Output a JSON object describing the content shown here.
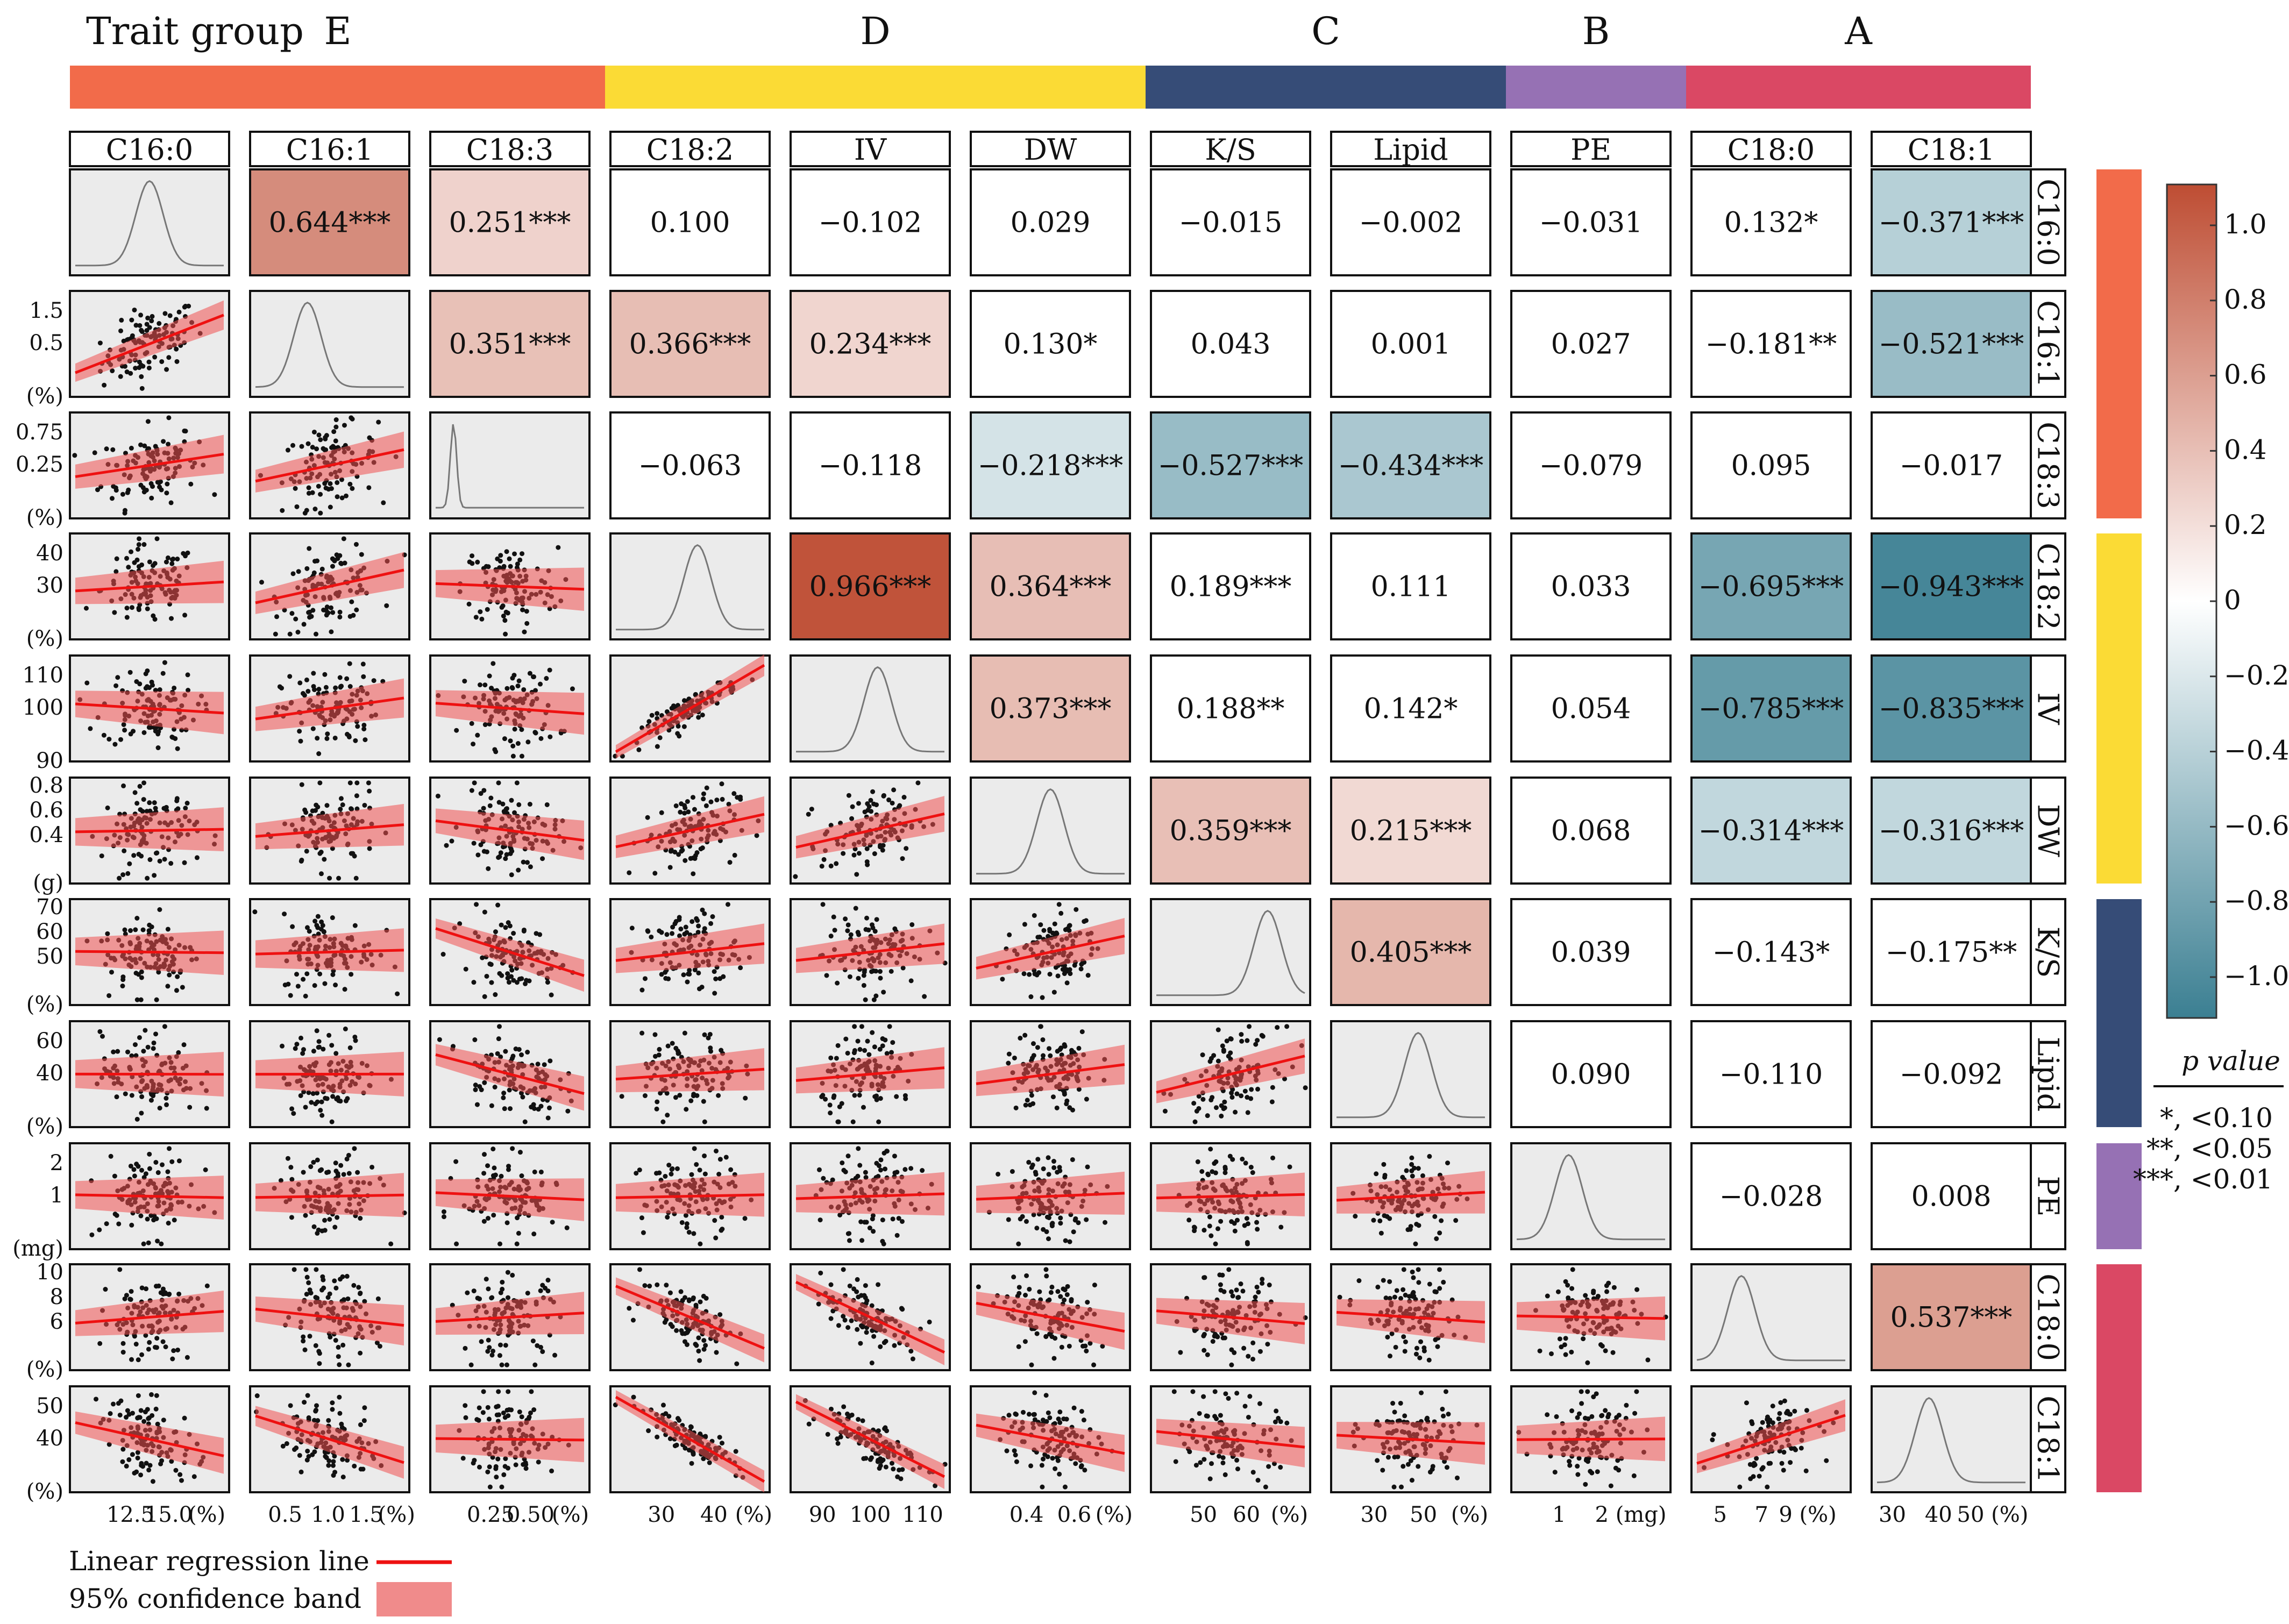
{
  "chart_data": {
    "type": "table",
    "title": "Trait group",
    "variables": [
      "C16:0",
      "C16:1",
      "C18:3",
      "C18:2",
      "IV",
      "DW",
      "K/S",
      "Lipid",
      "PE",
      "C18:0",
      "C18:1"
    ],
    "groups": [
      {
        "name": "E",
        "span": [
          0,
          2
        ],
        "color": "#F26B4A"
      },
      {
        "name": "D",
        "span": [
          3,
          5
        ],
        "color": "#FBDB35"
      },
      {
        "name": "C",
        "span": [
          6,
          7
        ],
        "color": "#364C77"
      },
      {
        "name": "B",
        "span": [
          8,
          8
        ],
        "color": "#9671B4"
      },
      {
        "name": "A",
        "span": [
          9,
          10
        ],
        "color": "#DA4864"
      }
    ],
    "correlations": [
      [
        "",
        "0.644***",
        "0.251***",
        "0.100",
        "−0.102",
        "0.029",
        "−0.015",
        "−0.002",
        "−0.031",
        "0.132*",
        "−0.371***"
      ],
      [
        "",
        "",
        "0.351***",
        "0.366***",
        "0.234***",
        "0.130*",
        "0.043",
        "0.001",
        "0.027",
        "−0.181**",
        "−0.521***"
      ],
      [
        "",
        "",
        "",
        "−0.063",
        "−0.118",
        "−0.218***",
        "−0.527***",
        "−0.434***",
        "−0.079",
        "0.095",
        "−0.017"
      ],
      [
        "",
        "",
        "",
        "",
        "0.966***",
        "0.364***",
        "0.189***",
        "0.111",
        "0.033",
        "−0.695***",
        "−0.943***"
      ],
      [
        "",
        "",
        "",
        "",
        "",
        "0.373***",
        "0.188**",
        "0.142*",
        "0.054",
        "−0.785***",
        "−0.835***"
      ],
      [
        "",
        "",
        "",
        "",
        "",
        "",
        "0.359***",
        "0.215***",
        "0.068",
        "−0.314***",
        "−0.316***"
      ],
      [
        "",
        "",
        "",
        "",
        "",
        "",
        "",
        "0.405***",
        "0.039",
        "−0.143*",
        "−0.175**"
      ],
      [
        "",
        "",
        "",
        "",
        "",
        "",
        "",
        "",
        "0.090",
        "−0.110",
        "−0.092"
      ],
      [
        "",
        "",
        "",
        "",
        "",
        "",
        "",
        "",
        "",
        "−0.028",
        "0.008"
      ],
      [
        "",
        "",
        "",
        "",
        "",
        "",
        "",
        "",
        "",
        "",
        "0.537***"
      ]
    ],
    "correlation_values": [
      [
        null,
        0.644,
        0.251,
        0.1,
        -0.102,
        0.029,
        -0.015,
        -0.002,
        -0.031,
        0.132,
        -0.371
      ],
      [
        null,
        null,
        0.351,
        0.366,
        0.234,
        0.13,
        0.043,
        0.001,
        0.027,
        -0.181,
        -0.521
      ],
      [
        null,
        null,
        null,
        -0.063,
        -0.118,
        -0.218,
        -0.527,
        -0.434,
        -0.079,
        0.095,
        -0.017
      ],
      [
        null,
        null,
        null,
        null,
        0.966,
        0.364,
        0.189,
        0.111,
        0.033,
        -0.695,
        -0.943
      ],
      [
        null,
        null,
        null,
        null,
        null,
        0.373,
        0.188,
        0.142,
        0.054,
        -0.785,
        -0.835
      ],
      [
        null,
        null,
        null,
        null,
        null,
        null,
        0.359,
        0.215,
        0.068,
        -0.314,
        -0.316
      ],
      [
        null,
        null,
        null,
        null,
        null,
        null,
        null,
        0.405,
        0.039,
        -0.143,
        -0.175
      ],
      [
        null,
        null,
        null,
        null,
        null,
        null,
        null,
        null,
        0.09,
        -0.11,
        -0.092
      ],
      [
        null,
        null,
        null,
        null,
        null,
        null,
        null,
        null,
        null,
        -0.028,
        0.008
      ],
      [
        null,
        null,
        null,
        null,
        null,
        null,
        null,
        null,
        null,
        null,
        0.537
      ]
    ],
    "x_ticks": [
      [
        "12.5",
        "15.0",
        "(%)"
      ],
      [
        "0.5",
        "1.0",
        "1.5",
        "(%)"
      ],
      [
        "0.25",
        "0.50",
        "(%)"
      ],
      [
        "30",
        "40",
        "(%)"
      ],
      [
        "90",
        "100",
        "110"
      ],
      [
        "0.4",
        "0.6",
        "(%)"
      ],
      [
        "50",
        "60",
        "(%)"
      ],
      [
        "30",
        "50",
        "(%)"
      ],
      [
        "1",
        "2 (mg)"
      ],
      [
        "5",
        "7",
        "9 (%)"
      ],
      [
        "30",
        "40",
        "50 (%)"
      ]
    ],
    "y_ticks": [
      [],
      [
        "1.5",
        "0.5",
        "(%)"
      ],
      [
        "0.75",
        "0.25",
        "(%)"
      ],
      [
        "40",
        "30",
        "(%)"
      ],
      [
        "110",
        "100",
        "90"
      ],
      [
        "0.8",
        "0.6",
        "0.4",
        "(g)"
      ],
      [
        "70",
        "60",
        "50",
        "(%)"
      ],
      [
        "60",
        "40",
        "(%)"
      ],
      [
        "2",
        "1",
        "(mg)"
      ],
      [
        "10",
        "8",
        "6",
        "(%)"
      ],
      [
        "50",
        "40",
        "(%)"
      ]
    ],
    "colorbar": {
      "ticks": [
        "1.0",
        "0.8",
        "0.6",
        "0.4",
        "0.2",
        "0",
        "−0.2",
        "−0.4",
        "−0.6",
        "−0.8",
        "−1.0"
      ],
      "range": [
        -1,
        1
      ],
      "high": "#BE4D33",
      "mid": "#ffffff",
      "low": "#3B7F92"
    },
    "pvalue_legend": {
      "title": "p value",
      "entries": [
        "*, <0.10",
        "**, <0.05",
        "***, <0.01"
      ]
    },
    "legend": {
      "line": "Linear regression line",
      "band": "95% confidence band"
    }
  }
}
